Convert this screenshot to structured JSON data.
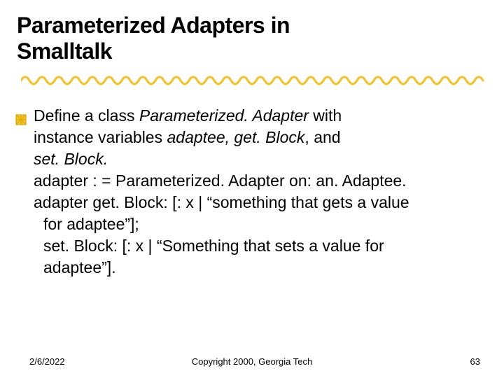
{
  "colors": {
    "text": "#000000",
    "background": "#ffffff",
    "scribble_yellow": "#f4c430",
    "bullet_fill": "#f4c430",
    "bullet_stroke": "#d9a800"
  },
  "title": {
    "line1": "Parameterized Adapters in",
    "line2": "Smalltalk",
    "fontsize": 32,
    "weight": 900
  },
  "body": {
    "fontsize": 23,
    "lines": [
      {
        "bullet": true,
        "segments": [
          {
            "t": "Define a class "
          },
          {
            "t": "Parameterized. Adapter",
            "italic": true
          },
          {
            "t": " with"
          }
        ]
      },
      {
        "indent": 1,
        "segments": [
          {
            "t": "instance variables "
          },
          {
            "t": "adaptee, get. Block",
            "italic": true
          },
          {
            "t": ", and"
          }
        ]
      },
      {
        "indent": 1,
        "segments": [
          {
            "t": "set. Block.",
            "italic": true
          }
        ]
      },
      {
        "segments": [
          {
            "t": "adapter : = Parameterized. Adapter on: an. Adaptee."
          }
        ]
      },
      {
        "segments": [
          {
            "t": "adapter get. Block: [: x | “something that gets a value"
          }
        ]
      },
      {
        "indent": 2,
        "segments": [
          {
            "t": "for adaptee”];"
          }
        ]
      },
      {
        "indent": 2,
        "segments": [
          {
            "t": "set. Block: [: x | “Something that sets a value for"
          }
        ]
      },
      {
        "indent": 2,
        "segments": [
          {
            "t": "adaptee”]."
          }
        ]
      }
    ]
  },
  "footer": {
    "date": "2/6/2022",
    "copyright": "Copyright 2000, Georgia Tech",
    "page": "63",
    "fontsize": 13
  }
}
